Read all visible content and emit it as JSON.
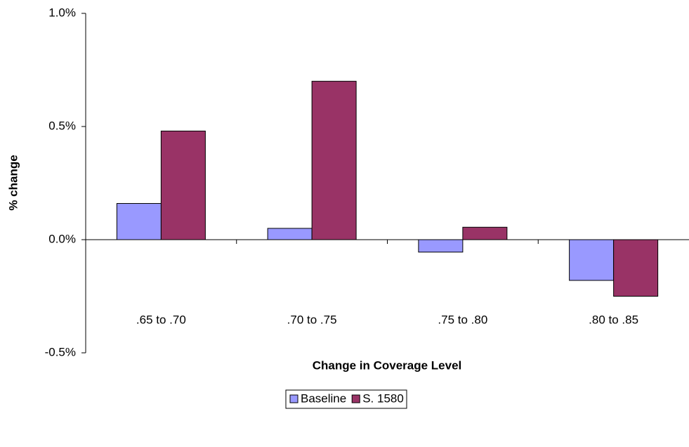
{
  "chart_data": {
    "type": "bar",
    "x_label": "Change in Coverage Level",
    "y_label": "% change",
    "categories": [
      ".65 to .70",
      ".70 to .75",
      ".75 to .80",
      ".80 to .85"
    ],
    "series": [
      {
        "name": "Baseline",
        "color": "#9999ff",
        "values": [
          0.16,
          0.05,
          -0.055,
          -0.18
        ]
      },
      {
        "name": "S. 1580",
        "color": "#993366",
        "values": [
          0.48,
          0.7,
          0.055,
          -0.25
        ]
      }
    ],
    "ylim": [
      -0.5,
      1.0
    ],
    "yticks": [
      {
        "value": -0.5,
        "label": "-0.5%"
      },
      {
        "value": 0,
        "label": "0.0%"
      },
      {
        "value": 0.5,
        "label": "0.5%"
      },
      {
        "value": 1.0,
        "label": "1.0%"
      }
    ],
    "grid": false,
    "legend": "bottom"
  }
}
